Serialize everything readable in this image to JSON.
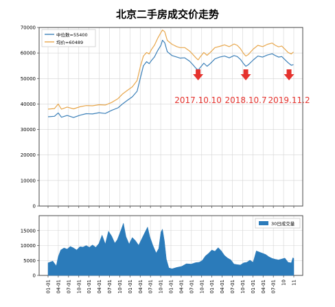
{
  "chart_data": [
    {
      "type": "line",
      "title": "北京二手房成交价走势",
      "ylim": [
        0,
        70000
      ],
      "yticks": [
        0,
        10000,
        20000,
        30000,
        40000,
        50000,
        60000,
        70000
      ],
      "legend_position": "top-left",
      "grid": true,
      "series": [
        {
          "name": "中位数=55400",
          "color": "#3a7fb8",
          "points": [
            [
              0,
              35000
            ],
            [
              2,
              35200
            ],
            [
              3.2,
              36500
            ],
            [
              4.2,
              34800
            ],
            [
              6,
              35500
            ],
            [
              8,
              34700
            ],
            [
              10,
              35600
            ],
            [
              12,
              36200
            ],
            [
              14,
              36100
            ],
            [
              16,
              36600
            ],
            [
              18,
              36300
            ],
            [
              20,
              37500
            ],
            [
              22,
              38500
            ],
            [
              23.5,
              40100
            ],
            [
              25,
              41500
            ],
            [
              26.5,
              42800
            ],
            [
              28,
              45000
            ],
            [
              29,
              50000
            ],
            [
              30,
              55000
            ],
            [
              31,
              56600
            ],
            [
              31.8,
              55800
            ],
            [
              32.5,
              57000
            ],
            [
              33.5,
              58500
            ],
            [
              34.5,
              61000
            ],
            [
              35.5,
              63000
            ],
            [
              36,
              65000
            ],
            [
              36.7,
              64000
            ],
            [
              37.5,
              60500
            ],
            [
              39,
              59000
            ],
            [
              40.5,
              58400
            ],
            [
              41.5,
              58000
            ],
            [
              43,
              58100
            ],
            [
              44.5,
              56800
            ],
            [
              45.5,
              55500
            ],
            [
              46.5,
              54000
            ],
            [
              47.2,
              53300
            ],
            [
              48,
              54500
            ],
            [
              49,
              56000
            ],
            [
              50,
              54800
            ],
            [
              51,
              55800
            ],
            [
              52.5,
              57700
            ],
            [
              54,
              58400
            ],
            [
              55.5,
              58800
            ],
            [
              57,
              58100
            ],
            [
              58.5,
              59000
            ],
            [
              59.5,
              58600
            ],
            [
              60.5,
              57500
            ],
            [
              61.5,
              55800
            ],
            [
              62.2,
              54800
            ],
            [
              63,
              55400
            ],
            [
              64.5,
              57200
            ],
            [
              66,
              58800
            ],
            [
              67.5,
              58400
            ],
            [
              69,
              59200
            ],
            [
              70.5,
              59700
            ],
            [
              71.5,
              59000
            ],
            [
              72.5,
              58400
            ],
            [
              73.5,
              58600
            ],
            [
              74.5,
              57400
            ],
            [
              75.5,
              56200
            ],
            [
              76.5,
              55200
            ],
            [
              77.2,
              55400
            ]
          ]
        },
        {
          "name": "均价=60489",
          "color": "#e8a64a",
          "points": [
            [
              0,
              38000
            ],
            [
              2,
              38200
            ],
            [
              3.2,
              40000
            ],
            [
              4.2,
              38000
            ],
            [
              6,
              38800
            ],
            [
              8,
              38100
            ],
            [
              10,
              38900
            ],
            [
              12,
              39400
            ],
            [
              14,
              39300
            ],
            [
              16,
              39700
            ],
            [
              18,
              39600
            ],
            [
              20,
              40600
            ],
            [
              22,
              42100
            ],
            [
              23.5,
              44000
            ],
            [
              25,
              45400
            ],
            [
              26.5,
              46700
            ],
            [
              28,
              49200
            ],
            [
              29,
              54500
            ],
            [
              30,
              58800
            ],
            [
              31,
              60200
            ],
            [
              31.8,
              59600
            ],
            [
              32.5,
              61300
            ],
            [
              33.5,
              63100
            ],
            [
              34.5,
              65800
            ],
            [
              35.5,
              68000
            ],
            [
              36,
              69000
            ],
            [
              36.7,
              68300
            ],
            [
              37.5,
              64900
            ],
            [
              39,
              63400
            ],
            [
              40.5,
              62500
            ],
            [
              41.5,
              62100
            ],
            [
              43,
              62100
            ],
            [
              44.5,
              60800
            ],
            [
              45.5,
              59500
            ],
            [
              46.5,
              58100
            ],
            [
              47.2,
              57300
            ],
            [
              48,
              58700
            ],
            [
              49,
              60200
            ],
            [
              50,
              59100
            ],
            [
              51,
              60200
            ],
            [
              52.5,
              62100
            ],
            [
              54,
              62600
            ],
            [
              55.5,
              63200
            ],
            [
              57,
              62500
            ],
            [
              58.5,
              63500
            ],
            [
              59.5,
              63000
            ],
            [
              60.5,
              61700
            ],
            [
              61.5,
              59800
            ],
            [
              62.2,
              58800
            ],
            [
              63,
              59400
            ],
            [
              64.5,
              61500
            ],
            [
              66,
              63000
            ],
            [
              67.5,
              62500
            ],
            [
              69,
              63400
            ],
            [
              70.5,
              63900
            ],
            [
              71.5,
              63000
            ],
            [
              72.5,
              62400
            ],
            [
              73.5,
              62700
            ],
            [
              74.5,
              61500
            ],
            [
              75.5,
              60200
            ],
            [
              76.5,
              59600
            ],
            [
              77.2,
              60400
            ]
          ]
        }
      ],
      "annotations": [
        {
          "text": "2017.10.10",
          "x": 47.2,
          "color": "#e5322d"
        },
        {
          "text": "2018.10.7",
          "x": 62.2,
          "color": "#e5322d"
        },
        {
          "text": "2019.11.2",
          "x": 75.8,
          "color": "#e5322d"
        }
      ]
    },
    {
      "type": "area",
      "ylim": [
        0,
        20000
      ],
      "yticks": [
        0,
        5000,
        10000,
        15000
      ],
      "x_tick_labels": [
        "01-01",
        "04-01",
        "07-01",
        "10-01",
        "01-01",
        "04-01",
        "07-01",
        "10-01",
        "01-01",
        "04-01",
        "07-01",
        "10-01",
        "01-01",
        "04-01",
        "07-01",
        "10-01",
        "01-01",
        "04-01",
        "07-01",
        "10-01",
        "01-01",
        "04-01",
        "07-01",
        "10",
        "11"
      ],
      "legend_position": "top-right",
      "grid": true,
      "series": [
        {
          "name": "30日成交量",
          "color": "#2b7bba",
          "points": [
            [
              0,
              4200
            ],
            [
              1.5,
              4800
            ],
            [
              2.6,
              3200
            ],
            [
              3.2,
              6300
            ],
            [
              4,
              8500
            ],
            [
              5,
              9200
            ],
            [
              6,
              8800
            ],
            [
              7,
              9700
            ],
            [
              8,
              9200
            ],
            [
              9,
              8500
            ],
            [
              10,
              9600
            ],
            [
              11,
              9500
            ],
            [
              12,
              10000
            ],
            [
              13,
              9400
            ],
            [
              14,
              10200
            ],
            [
              15,
              9400
            ],
            [
              16,
              10700
            ],
            [
              17,
              13500
            ],
            [
              18,
              10500
            ],
            [
              19,
              14800
            ],
            [
              20,
              13200
            ],
            [
              21,
              10800
            ],
            [
              21.8,
              12000
            ],
            [
              23,
              15300
            ],
            [
              23.7,
              17500
            ],
            [
              24.5,
              13000
            ],
            [
              25.5,
              10500
            ],
            [
              26.5,
              12700
            ],
            [
              27.5,
              11600
            ],
            [
              28.5,
              10100
            ],
            [
              29.5,
              12300
            ],
            [
              30.5,
              14500
            ],
            [
              31.3,
              16200
            ],
            [
              32,
              13000
            ],
            [
              33,
              10000
            ],
            [
              34,
              7500
            ],
            [
              34.8,
              9000
            ],
            [
              35.5,
              14500
            ],
            [
              36,
              15500
            ],
            [
              36.6,
              11500
            ],
            [
              37.2,
              5500
            ],
            [
              38,
              2500
            ],
            [
              39,
              2200
            ],
            [
              40.5,
              2700
            ],
            [
              42,
              3000
            ],
            [
              43.5,
              3900
            ],
            [
              45,
              3800
            ],
            [
              46.5,
              4300
            ],
            [
              47.5,
              4400
            ],
            [
              48.5,
              5000
            ],
            [
              49.5,
              6500
            ],
            [
              50.5,
              7400
            ],
            [
              51.5,
              8500
            ],
            [
              52.5,
              8100
            ],
            [
              53.5,
              9300
            ],
            [
              54.5,
              8200
            ],
            [
              55.5,
              6700
            ],
            [
              56.5,
              5800
            ],
            [
              57.5,
              5200
            ],
            [
              58.5,
              3800
            ],
            [
              59.5,
              3600
            ],
            [
              60.5,
              3500
            ],
            [
              61.5,
              4200
            ],
            [
              62.5,
              4400
            ],
            [
              63.5,
              5100
            ],
            [
              64.5,
              4400
            ],
            [
              65.5,
              8200
            ],
            [
              66.5,
              7800
            ],
            [
              67.5,
              7400
            ],
            [
              68.5,
              7000
            ],
            [
              69.5,
              6200
            ],
            [
              70.5,
              5700
            ],
            [
              71.5,
              5400
            ],
            [
              72.5,
              5200
            ],
            [
              73.5,
              5500
            ],
            [
              74.5,
              5800
            ],
            [
              75.5,
              4400
            ],
            [
              76.5,
              4200
            ],
            [
              77,
              5900
            ],
            [
              77.3,
              5700
            ]
          ]
        }
      ]
    }
  ]
}
